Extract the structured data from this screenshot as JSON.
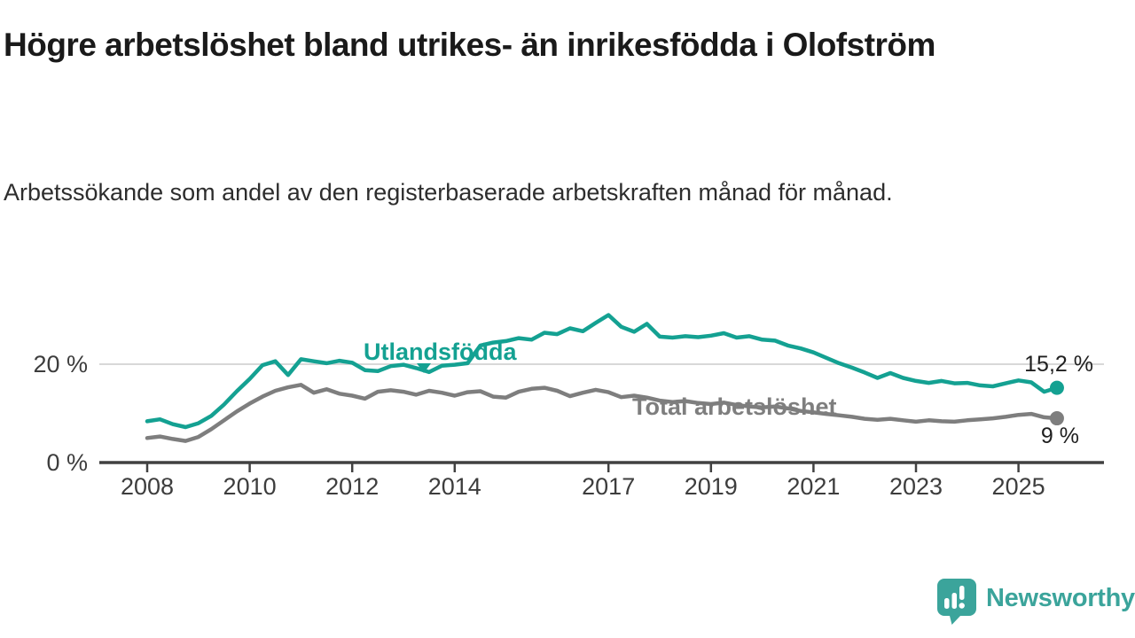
{
  "header": {
    "title": "Högre arbetslöshet bland utrikes- än inrikesfödda i Olofström",
    "subtitle": "Arbetssökande som andel av den registerbaserade arbetskraften månad för månad."
  },
  "chart_data": {
    "type": "line",
    "title": "Högre arbetslöshet bland utrikes- än inrikesfödda i Olofström",
    "subtitle": "Arbetssökande som andel av den registerbaserade arbetskraften månad för månad.",
    "unit": "%",
    "xlim": [
      2008,
      2026
    ],
    "ylim": [
      0,
      34
    ],
    "grid": "single horizontal gridline at 20 %",
    "legend_position": "inline labels on lines",
    "x": [
      2008,
      2008.25,
      2008.5,
      2008.75,
      2009,
      2009.25,
      2009.5,
      2009.75,
      2010,
      2010.25,
      2010.5,
      2010.75,
      2011,
      2011.25,
      2011.5,
      2011.75,
      2012,
      2012.25,
      2012.5,
      2012.75,
      2013,
      2013.25,
      2013.5,
      2013.75,
      2014,
      2014.25,
      2014.5,
      2014.75,
      2015,
      2015.25,
      2015.5,
      2015.75,
      2016,
      2016.25,
      2016.5,
      2016.75,
      2017,
      2017.25,
      2017.5,
      2017.75,
      2018,
      2018.25,
      2018.5,
      2018.75,
      2019,
      2019.25,
      2019.5,
      2019.75,
      2020,
      2020.25,
      2020.5,
      2020.75,
      2021,
      2021.25,
      2021.5,
      2021.75,
      2022,
      2022.25,
      2022.5,
      2022.75,
      2023,
      2023.25,
      2023.5,
      2023.75,
      2024,
      2024.25,
      2024.5,
      2024.75,
      2025,
      2025.25,
      2025.5,
      2025.75
    ],
    "series": [
      {
        "name": "Utlandsfödda",
        "color": "#14a192",
        "end_label": "15,2 %",
        "end_value": 15.2,
        "values": [
          8.4,
          8.8,
          7.8,
          7.2,
          8.0,
          9.5,
          11.8,
          14.5,
          17.0,
          19.8,
          20.6,
          17.8,
          21.0,
          20.6,
          20.2,
          20.7,
          20.3,
          18.8,
          18.6,
          19.6,
          19.9,
          19.2,
          18.4,
          19.7,
          19.9,
          20.2,
          23.8,
          24.4,
          24.7,
          25.3,
          25.0,
          26.4,
          26.1,
          27.3,
          26.7,
          28.4,
          30.0,
          27.6,
          26.6,
          28.2,
          25.6,
          25.4,
          25.7,
          25.5,
          25.8,
          26.3,
          25.4,
          25.7,
          25.0,
          24.8,
          23.8,
          23.2,
          22.4,
          21.3,
          20.2,
          19.3,
          18.3,
          17.2,
          18.2,
          17.2,
          16.6,
          16.2,
          16.6,
          16.1,
          16.2,
          15.7,
          15.5,
          16.1,
          16.7,
          16.3,
          14.4,
          15.2
        ]
      },
      {
        "name": "Total arbetslöshet",
        "color": "#7e7e7e",
        "end_label": "9 %",
        "end_value": 9.0,
        "values": [
          5.0,
          5.3,
          4.8,
          4.4,
          5.2,
          6.8,
          8.6,
          10.4,
          12.0,
          13.4,
          14.6,
          15.3,
          15.8,
          14.2,
          14.9,
          14.0,
          13.6,
          13.0,
          14.4,
          14.7,
          14.4,
          13.8,
          14.6,
          14.2,
          13.6,
          14.3,
          14.5,
          13.4,
          13.2,
          14.4,
          15.0,
          15.2,
          14.6,
          13.5,
          14.2,
          14.8,
          14.3,
          13.3,
          13.6,
          13.2,
          12.6,
          12.3,
          12.5,
          12.1,
          11.9,
          12.2,
          11.7,
          11.4,
          11.2,
          11.4,
          11.0,
          10.5,
          10.2,
          9.9,
          9.6,
          9.3,
          8.9,
          8.7,
          8.9,
          8.6,
          8.3,
          8.6,
          8.4,
          8.3,
          8.6,
          8.8,
          9.0,
          9.3,
          9.7,
          9.9,
          9.2,
          9.0
        ]
      }
    ],
    "x_ticks": {
      "values": [
        2008,
        2010,
        2012,
        2014,
        2017,
        2019,
        2021,
        2023,
        2025
      ],
      "labels": [
        "2008",
        "2010",
        "2012",
        "2014",
        "2017",
        "2019",
        "2021",
        "2023",
        "2025"
      ]
    },
    "y_ticks": [
      {
        "value": 0,
        "label": "0 %"
      },
      {
        "value": 20,
        "label": "20 %"
      }
    ]
  },
  "branding": {
    "name": "Newsworthy",
    "color": "#3ba49b"
  }
}
